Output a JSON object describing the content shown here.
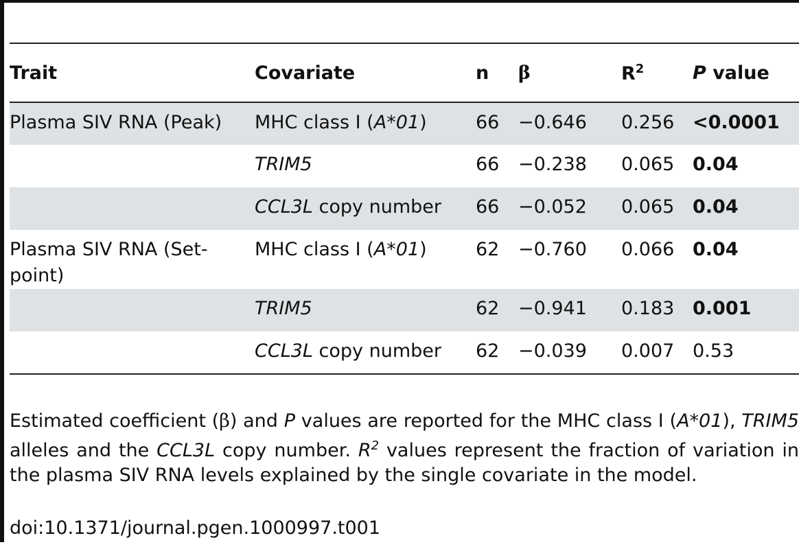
{
  "table": {
    "headers": {
      "trait": "Trait",
      "covariate": "Covariate",
      "n": "n",
      "beta": "β",
      "r2_base": "R",
      "r2_sup": "2",
      "p_italic": "P",
      "p_rest": " value"
    },
    "rows": [
      {
        "trait": "Plasma SIV RNA (Peak)",
        "cov_pre": "MHC class I (",
        "cov_ital": "A*01",
        "cov_post": ")",
        "n": "66",
        "beta": "−0.646",
        "r2": "0.256",
        "p": "<0.0001",
        "p_bold": true
      },
      {
        "trait": "",
        "cov_pre": "",
        "cov_ital": "TRIM5",
        "cov_post": "",
        "n": "66",
        "beta": "−0.238",
        "r2": "0.065",
        "p": "0.04",
        "p_bold": true
      },
      {
        "trait": "",
        "cov_pre": "",
        "cov_ital": "CCL3L",
        "cov_post": " copy number",
        "n": "66",
        "beta": "−0.052",
        "r2": "0.065",
        "p": "0.04",
        "p_bold": true
      },
      {
        "trait": "Plasma SIV RNA (Set-point)",
        "cov_pre": "MHC class I (",
        "cov_ital": "A*01",
        "cov_post": ")",
        "n": "62",
        "beta": "−0.760",
        "r2": "0.066",
        "p": "0.04",
        "p_bold": true
      },
      {
        "trait": "",
        "cov_pre": "",
        "cov_ital": "TRIM5",
        "cov_post": "",
        "n": "62",
        "beta": "−0.941",
        "r2": "0.183",
        "p": "0.001",
        "p_bold": true
      },
      {
        "trait": "",
        "cov_pre": "",
        "cov_ital": "CCL3L",
        "cov_post": " copy number",
        "n": "62",
        "beta": "−0.039",
        "r2": "0.007",
        "p": "0.53",
        "p_bold": false
      }
    ]
  },
  "footnote": {
    "t1": "Estimated coefficient (",
    "t2": "β",
    "t3": ") and ",
    "t4": "P",
    "t5": " values are reported for the MHC class I (",
    "t6": "A*01",
    "t7": "), ",
    "t8": "TRIM5",
    "t9": " alleles and the ",
    "t10": "CCL3L",
    "t11": " copy number. ",
    "t12": "R",
    "t13": "2",
    "t14": " values represent the fraction of variation in the plasma SIV RNA levels explained by the single covariate in the model."
  },
  "doi": "doi:10.1371/journal.pgen.1000997.t001",
  "colors": {
    "row_shade": "#dfe2e4",
    "rule": "#222222"
  }
}
